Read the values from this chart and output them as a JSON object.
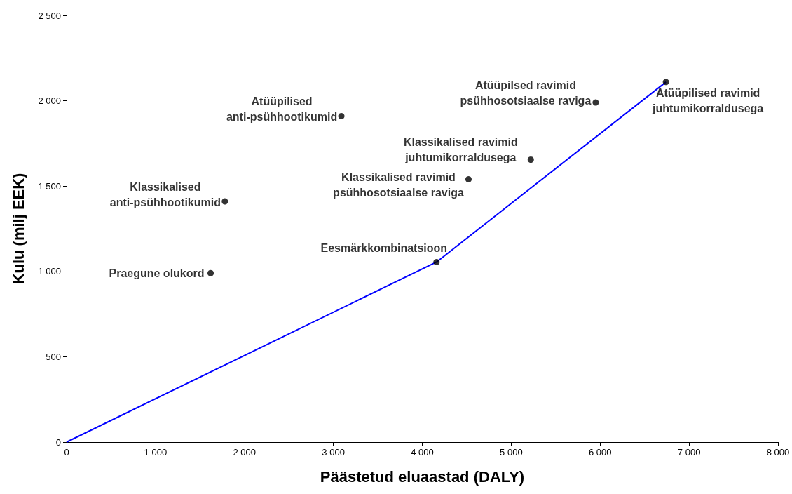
{
  "chart_data": {
    "type": "scatter",
    "xlabel": "Päästetud eluaastad (DALY)",
    "ylabel": "Kulu (milj EEK)",
    "xlim": [
      0,
      8000
    ],
    "ylim": [
      0,
      2500
    ],
    "xticks": [
      0,
      {
        "value": 1000,
        "label": "1 000"
      },
      {
        "value": 2000,
        "label": "2 000"
      },
      {
        "value": 3000,
        "label": "3 000"
      },
      {
        "value": 4000,
        "label": "4 000"
      },
      {
        "value": 5000,
        "label": "5 000"
      },
      {
        "value": 6000,
        "label": "6 000"
      },
      {
        "value": 7000,
        "label": "7 000"
      },
      {
        "value": 8000,
        "label": "8 000"
      }
    ],
    "yticks": [
      0,
      500,
      {
        "value": 1000,
        "label": "1 000"
      },
      {
        "value": 1500,
        "label": "1 500"
      },
      {
        "value": 2000,
        "label": "2 000"
      },
      {
        "value": 2500,
        "label": "2 500"
      }
    ],
    "grid": false,
    "marker": "circle",
    "series": [
      {
        "color": "#000000",
        "x": [
          1620,
          1780,
          3090,
          4160,
          4520,
          5220,
          5950,
          6740
        ],
        "values": [
          990,
          1410,
          1910,
          1055,
          1540,
          1655,
          1990,
          2110
        ]
      },
      {
        "type": "line",
        "color": "#0000ff",
        "marker": "none",
        "line_style": "solid",
        "x": [
          0,
          4160,
          6740
        ],
        "values": [
          0,
          1055,
          2110
        ]
      }
    ],
    "annotations": [
      {
        "text": "Praegune olukord",
        "x": 1620,
        "y": 990
      },
      {
        "text": "Klassikalised\nanti-psühhootikumid",
        "x": 1780,
        "y": 1410
      },
      {
        "text": "Atüüpilised\nanti-psühhootikumid",
        "x": 3090,
        "y": 1910
      },
      {
        "text": "Eesmärkkombinatsioon",
        "x": 4160,
        "y": 1055
      },
      {
        "text": "Klassikalised ravimid\npsühhosotsiaalse raviga",
        "x": 4520,
        "y": 1540
      },
      {
        "text": "Klassikalised ravimid\njuhtumikorraldusega",
        "x": 5220,
        "y": 1655
      },
      {
        "text": "Atüüpilsed ravimid\npsühhosotsiaalse raviga",
        "x": 5950,
        "y": 1990
      },
      {
        "text": "Atüüpilised ravimid\njuhtumikorraldusega",
        "x": 6740,
        "y": 2110
      }
    ]
  }
}
